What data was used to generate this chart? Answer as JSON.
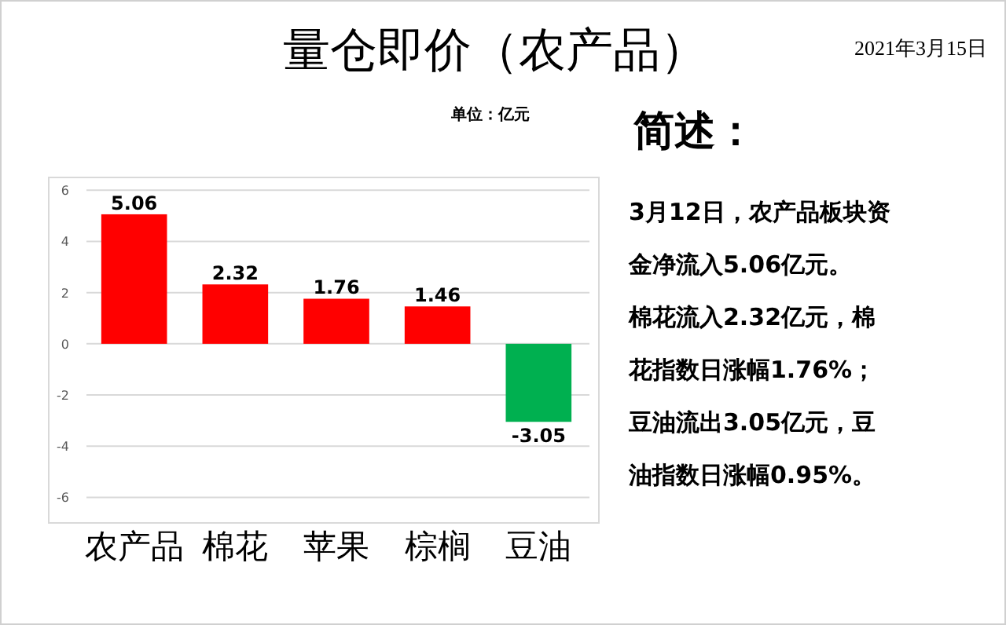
{
  "chart_data": {
    "type": "bar",
    "title": "量仓即价（农产品）",
    "categories": [
      "农产品",
      "棉花",
      "苹果",
      "棕榈",
      "豆油"
    ],
    "values": [
      5.06,
      2.32,
      1.76,
      1.46,
      -3.05
    ],
    "colors": [
      "#ff0000",
      "#ff0000",
      "#ff0000",
      "#ff0000",
      "#00b050"
    ],
    "ylim": [
      -7,
      6.5
    ],
    "yticks": [
      6,
      4,
      2,
      0,
      -2,
      -4,
      -6
    ],
    "grid": "y",
    "data_labels": true,
    "annotations": [
      "2021年3月15日",
      "单位：亿元",
      "简述：",
      "3月12日，农产品板块资",
      "金净流入5.06亿元。",
      "棉花流入2.32亿元，棉",
      "花指数日涨幅1.76%；",
      "豆油流出3.05亿元，豆",
      "油指数日涨幅0.95%。"
    ]
  }
}
